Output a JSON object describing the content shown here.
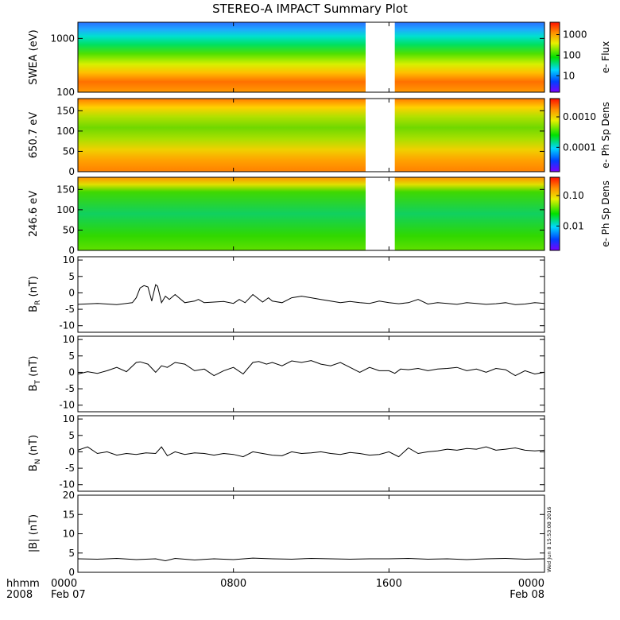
{
  "title": "STEREO-A IMPACT Summary Plot",
  "footer": {
    "left_top": "hhmm",
    "left_bottom": "2008",
    "time_labels": [
      "0000",
      "0800",
      "1600",
      "0000"
    ],
    "date_labels": [
      "Feb 07",
      "",
      "",
      "Feb 08"
    ],
    "timestamp": "Wed Jun  8 15:53:08 2016"
  },
  "chart_data": [
    {
      "type": "heatmap",
      "id": "swea",
      "ylabel": "SWEA (eV)",
      "y_scale": "log",
      "ylim": [
        100,
        2000
      ],
      "yticks": [
        100,
        1000
      ],
      "ytick_labels": [
        "100",
        "1000"
      ],
      "colorbar_label": "e- Flux",
      "colorbar_scale": "log",
      "colorbar_ticks": [
        "1000",
        "100",
        "10"
      ],
      "data_gap_hours": [
        14.8,
        16.3
      ]
    },
    {
      "type": "heatmap",
      "id": "pad650",
      "ylabel": "650.7 eV",
      "ylim": [
        0,
        180
      ],
      "yticks": [
        0,
        50,
        100,
        150
      ],
      "ytick_labels": [
        "0",
        "50",
        "100",
        "150"
      ],
      "colorbar_label": "e- Ph Sp Dens",
      "colorbar_scale": "log",
      "colorbar_ticks": [
        "0.0010",
        "0.0001"
      ],
      "data_gap_hours": [
        14.8,
        16.3
      ]
    },
    {
      "type": "heatmap",
      "id": "pad246",
      "ylabel": "246.6 eV",
      "ylim": [
        0,
        180
      ],
      "yticks": [
        0,
        50,
        100,
        150
      ],
      "ytick_labels": [
        "0",
        "50",
        "100",
        "150"
      ],
      "colorbar_label": "e- Ph Sp Dens",
      "colorbar_scale": "log",
      "colorbar_ticks": [
        "0.10",
        "0.01"
      ],
      "data_gap_hours": [
        14.8,
        16.3
      ]
    },
    {
      "type": "line",
      "id": "br",
      "ylabel_main": "B",
      "ylabel_sub": "R",
      "ylabel_unit": " (nT)",
      "ylim": [
        -12,
        11
      ],
      "yticks": [
        -10,
        -5,
        0,
        5,
        10
      ],
      "ytick_labels": [
        "-10",
        "-5",
        "0",
        "5",
        "10"
      ],
      "x_hours": [
        0,
        1,
        2,
        2.8,
        3,
        3.2,
        3.4,
        3.6,
        3.8,
        4.0,
        4.1,
        4.3,
        4.5,
        4.7,
        5.0,
        5.5,
        6.0,
        6.2,
        6.5,
        7.0,
        7.5,
        8.0,
        8.3,
        8.6,
        9.0,
        9.5,
        9.8,
        10.0,
        10.5,
        11.0,
        11.5,
        12.0,
        12.5,
        13.0,
        13.5,
        14.0,
        14.5,
        15.0,
        15.5,
        16.0,
        16.5,
        17.0,
        17.5,
        18.0,
        18.5,
        19.0,
        19.5,
        20.0,
        20.5,
        21.0,
        21.5,
        22.0,
        22.5,
        23.0,
        23.5,
        24.0
      ],
      "values": [
        -3.5,
        -3.2,
        -3.6,
        -3.0,
        -1.5,
        1.5,
        2.2,
        1.8,
        -2.5,
        2.5,
        2.0,
        -3.0,
        -1.0,
        -2.0,
        -0.5,
        -3.0,
        -2.5,
        -2.0,
        -3.0,
        -2.8,
        -2.6,
        -3.2,
        -2.0,
        -3.0,
        -0.5,
        -2.8,
        -1.5,
        -2.5,
        -3.0,
        -1.5,
        -1.0,
        -1.5,
        -2.0,
        -2.5,
        -3.0,
        -2.6,
        -3.0,
        -3.2,
        -2.5,
        -3.0,
        -3.3,
        -3.0,
        -2.0,
        -3.4,
        -3.0,
        -3.2,
        -3.5,
        -3.0,
        -3.2,
        -3.5,
        -3.3,
        -3.0,
        -3.6,
        -3.4,
        -3.0,
        -3.2
      ]
    },
    {
      "type": "line",
      "id": "bt",
      "ylabel_main": "B",
      "ylabel_sub": "T",
      "ylabel_unit": " (nT)",
      "ylim": [
        -12,
        11
      ],
      "yticks": [
        -10,
        -5,
        0,
        5,
        10
      ],
      "ytick_labels": [
        "-10",
        "-5",
        "0",
        "5",
        "10"
      ],
      "x_hours": [
        0,
        0.5,
        1,
        1.5,
        2,
        2.5,
        3.0,
        3.2,
        3.6,
        4.0,
        4.3,
        4.6,
        5.0,
        5.5,
        6.0,
        6.5,
        7.0,
        7.5,
        8.0,
        8.5,
        9.0,
        9.3,
        9.7,
        10.0,
        10.5,
        11.0,
        11.5,
        12.0,
        12.5,
        13.0,
        13.5,
        14.0,
        14.5,
        15.0,
        15.5,
        16.0,
        16.3,
        16.6,
        17.0,
        17.5,
        18.0,
        18.5,
        19.0,
        19.5,
        20.0,
        20.5,
        21.0,
        21.5,
        22.0,
        22.5,
        23.0,
        23.5,
        24.0
      ],
      "values": [
        -0.5,
        0.2,
        -0.3,
        0.5,
        1.5,
        0.2,
        3.0,
        3.2,
        2.5,
        0.0,
        2.0,
        1.5,
        3.0,
        2.5,
        0.5,
        1.0,
        -1.0,
        0.5,
        1.5,
        -0.5,
        3.0,
        3.3,
        2.5,
        3.0,
        2.0,
        3.5,
        3.0,
        3.6,
        2.5,
        2.0,
        3.0,
        1.5,
        0.0,
        1.5,
        0.5,
        0.5,
        -0.3,
        1.0,
        0.8,
        1.2,
        0.5,
        1.0,
        1.2,
        1.5,
        0.5,
        1.0,
        0.0,
        1.2,
        0.8,
        -1.0,
        0.5,
        -0.5,
        0.0
      ]
    },
    {
      "type": "line",
      "id": "bn",
      "ylabel_main": "B",
      "ylabel_sub": "N",
      "ylabel_unit": " (nT)",
      "ylim": [
        -12,
        11
      ],
      "yticks": [
        -10,
        -5,
        0,
        5,
        10
      ],
      "ytick_labels": [
        "-10",
        "-5",
        "0",
        "5",
        "10"
      ],
      "x_hours": [
        0,
        0.5,
        1,
        1.5,
        2,
        2.5,
        3.0,
        3.5,
        4.0,
        4.3,
        4.6,
        5.0,
        5.5,
        6.0,
        6.5,
        7.0,
        7.5,
        8.0,
        8.5,
        9.0,
        9.5,
        10.0,
        10.5,
        11.0,
        11.5,
        12.0,
        12.5,
        13.0,
        13.5,
        14.0,
        14.5,
        15.0,
        15.5,
        16.0,
        16.5,
        17.0,
        17.5,
        18.0,
        18.5,
        19.0,
        19.5,
        20.0,
        20.5,
        21.0,
        21.5,
        22.0,
        22.5,
        23.0,
        23.5,
        24.0
      ],
      "values": [
        0.5,
        1.5,
        -0.5,
        0.0,
        -1.0,
        -0.5,
        -0.8,
        -0.3,
        -0.5,
        1.5,
        -1.2,
        0.0,
        -0.8,
        -0.3,
        -0.5,
        -1.0,
        -0.5,
        -0.8,
        -1.5,
        0.0,
        -0.5,
        -1.0,
        -1.2,
        0.0,
        -0.5,
        -0.3,
        0.0,
        -0.5,
        -0.8,
        -0.2,
        -0.5,
        -1.0,
        -0.8,
        0.0,
        -1.5,
        1.2,
        -0.5,
        0.0,
        0.3,
        0.8,
        0.5,
        1.0,
        0.8,
        1.5,
        0.5,
        0.8,
        1.2,
        0.5,
        0.3,
        0.5
      ]
    },
    {
      "type": "line",
      "id": "bmag",
      "ylabel_main": "|B|",
      "ylabel_sub": "",
      "ylabel_unit": " (nT)",
      "ylim": [
        0,
        20
      ],
      "yticks": [
        0,
        5,
        10,
        15,
        20
      ],
      "ytick_labels": [
        "0",
        "5",
        "10",
        "15",
        "20"
      ],
      "x_hours": [
        0,
        1,
        2,
        3,
        4,
        4.5,
        5,
        6,
        7,
        8,
        9,
        10,
        11,
        12,
        13,
        14,
        15,
        16,
        17,
        18,
        19,
        20,
        21,
        22,
        23,
        24
      ],
      "values": [
        3.5,
        3.4,
        3.6,
        3.3,
        3.5,
        3.0,
        3.6,
        3.2,
        3.5,
        3.3,
        3.7,
        3.5,
        3.4,
        3.6,
        3.5,
        3.4,
        3.5,
        3.5,
        3.6,
        3.4,
        3.5,
        3.3,
        3.5,
        3.6,
        3.4,
        3.5
      ]
    }
  ]
}
